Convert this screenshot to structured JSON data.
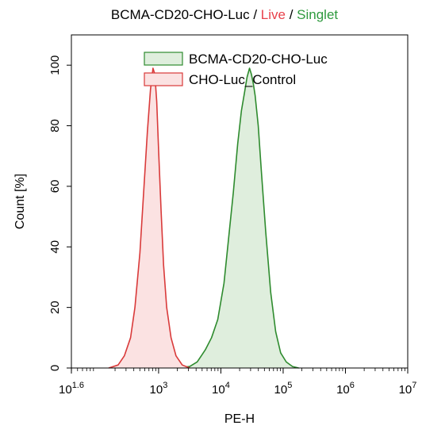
{
  "chart_data": {
    "type": "area",
    "title": {
      "parts": [
        {
          "text": "BCMA-CD20-CHO-Luc",
          "color": "#000000"
        },
        {
          "text": " / ",
          "color": "#000000"
        },
        {
          "text": "Live",
          "color": "#e8404a"
        },
        {
          "text": " / ",
          "color": "#000000"
        },
        {
          "text": "Singlet",
          "color": "#2e9a3e"
        }
      ]
    },
    "xlabel": "PE-H",
    "ylabel": "Count [%]",
    "x_scale": "log10",
    "xlim": [
      1.6,
      7
    ],
    "ylim": [
      0,
      110
    ],
    "x_ticks": [
      {
        "value": 1.6,
        "base": "10",
        "exp": "1.6"
      },
      {
        "value": 3,
        "base": "10",
        "exp": "3"
      },
      {
        "value": 4,
        "base": "10",
        "exp": "4"
      },
      {
        "value": 5,
        "base": "10",
        "exp": "5"
      },
      {
        "value": 6,
        "base": "10",
        "exp": "6"
      },
      {
        "value": 7,
        "base": "10",
        "exp": "7"
      }
    ],
    "y_ticks": [
      0,
      20,
      40,
      60,
      80,
      100
    ],
    "legend_position": "top-right",
    "series": [
      {
        "name": "BCMA-CD20-CHO-Luc",
        "stroke": "#2e8b2e",
        "fill": "#dfeedd",
        "log10_x": [
          3.3,
          3.5,
          3.62,
          3.75,
          3.85,
          3.95,
          4.05,
          4.12,
          4.2,
          4.27,
          4.33,
          4.38,
          4.42,
          4.46,
          4.49,
          4.52,
          4.55,
          4.6,
          4.65,
          4.72,
          4.8,
          4.88,
          4.96,
          5.05,
          5.15,
          5.25
        ],
        "y": [
          0,
          0.5,
          2,
          6,
          10,
          16,
          28,
          42,
          58,
          74,
          85,
          91,
          96,
          99,
          97,
          94,
          90,
          80,
          65,
          45,
          25,
          12,
          5,
          2,
          0.5,
          0
        ]
      },
      {
        "name": "CHO-Luc_Control",
        "stroke": "#d93a3a",
        "fill": "#fbe2e2",
        "log10_x": [
          2.2,
          2.35,
          2.45,
          2.55,
          2.62,
          2.7,
          2.76,
          2.82,
          2.87,
          2.91,
          2.94,
          2.97,
          3.0,
          3.04,
          3.08,
          3.13,
          3.2,
          3.28,
          3.38,
          3.5
        ],
        "y": [
          0,
          1,
          4,
          10,
          20,
          38,
          58,
          78,
          92,
          99,
          97,
          88,
          72,
          52,
          34,
          20,
          10,
          4,
          1,
          0
        ]
      }
    ]
  }
}
